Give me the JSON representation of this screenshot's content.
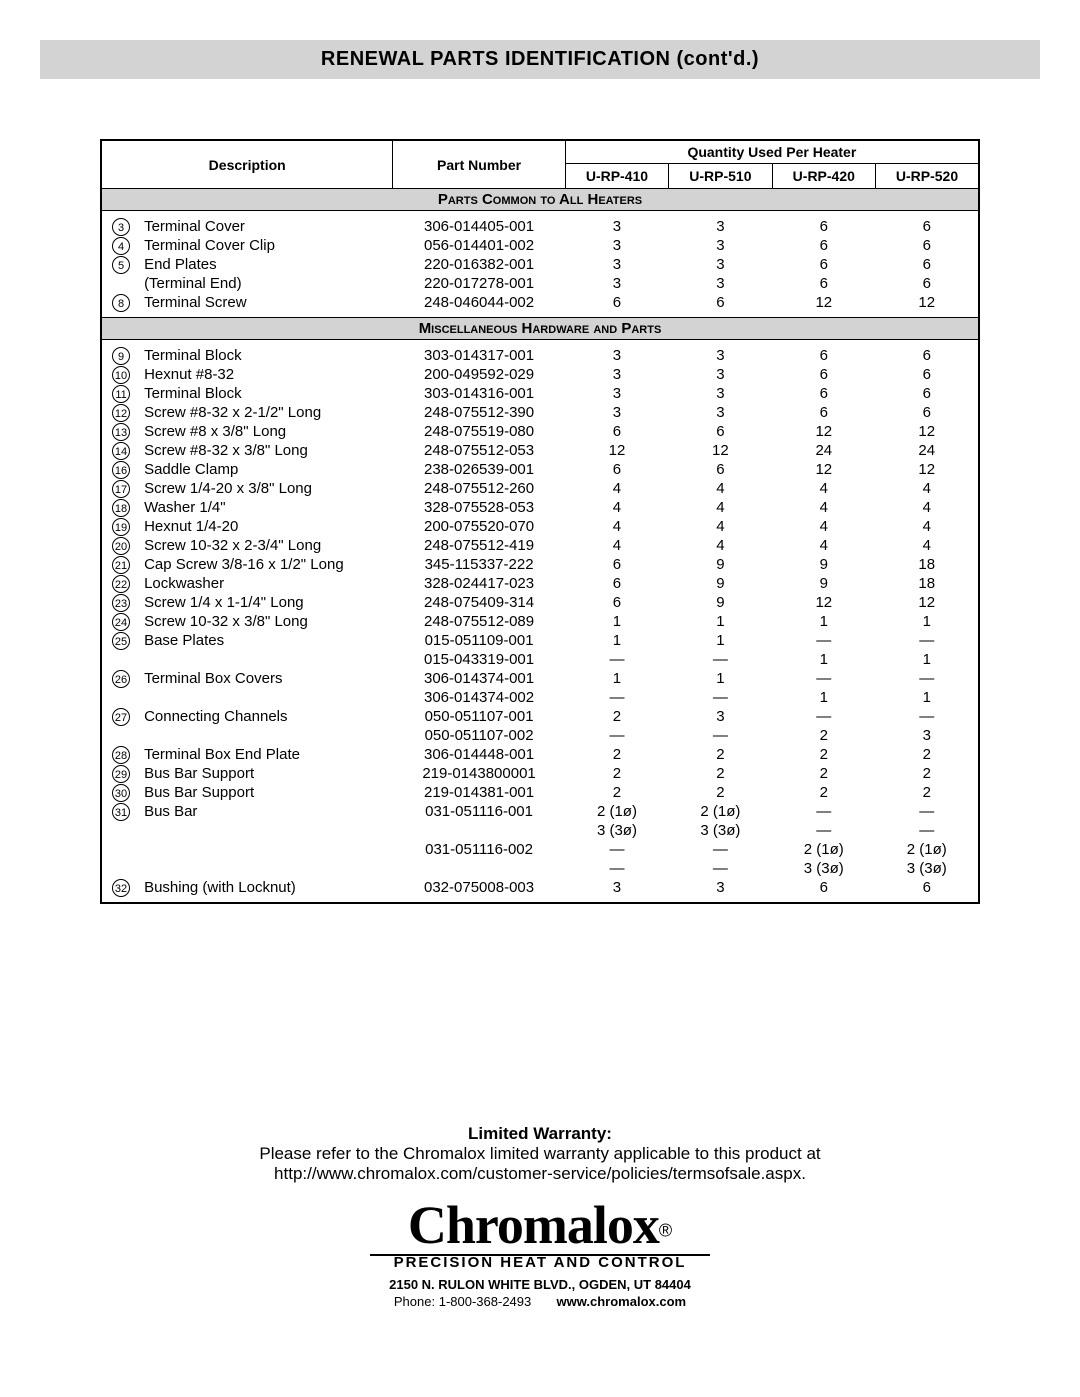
{
  "page_title": "RENEWAL PARTS IDENTIFICATION (cont'd.)",
  "columns": {
    "description": "Description",
    "part_number": "Part Number",
    "qty_header": "Quantity Used Per Heater",
    "models": [
      "U-RP-410",
      "U-RP-510",
      "U-RP-420",
      "U-RP-520"
    ]
  },
  "sections": [
    {
      "title": "Parts Common to All Heaters",
      "rows": [
        {
          "ref": "3",
          "desc": "Terminal Cover",
          "part": "306-014405-001",
          "qty": [
            "3",
            "3",
            "6",
            "6"
          ]
        },
        {
          "ref": "4",
          "desc": "Terminal Cover Clip",
          "part": "056-014401-002",
          "qty": [
            "3",
            "3",
            "6",
            "6"
          ]
        },
        {
          "ref": "5",
          "desc": "End Plates",
          "part": "220-016382-001",
          "qty": [
            "3",
            "3",
            "6",
            "6"
          ]
        },
        {
          "ref": "",
          "desc": "(Terminal End)",
          "part": "220-017278-001",
          "qty": [
            "3",
            "3",
            "6",
            "6"
          ]
        },
        {
          "ref": "8",
          "desc": "Terminal Screw",
          "part": "248-046044-002",
          "qty": [
            "6",
            "6",
            "12",
            "12"
          ]
        }
      ]
    },
    {
      "title": "Miscellaneous Hardware and Parts",
      "rows": [
        {
          "ref": "9",
          "desc": "Terminal Block",
          "part": "303-014317-001",
          "qty": [
            "3",
            "3",
            "6",
            "6"
          ]
        },
        {
          "ref": "10",
          "desc": "Hexnut #8-32",
          "part": "200-049592-029",
          "qty": [
            "3",
            "3",
            "6",
            "6"
          ]
        },
        {
          "ref": "11",
          "desc": "Terminal Block",
          "part": "303-014316-001",
          "qty": [
            "3",
            "3",
            "6",
            "6"
          ]
        },
        {
          "ref": "12",
          "desc": "Screw #8-32 x 2-1/2\" Long",
          "part": "248-075512-390",
          "qty": [
            "3",
            "3",
            "6",
            "6"
          ]
        },
        {
          "ref": "13",
          "desc": "Screw #8 x 3/8\" Long",
          "part": "248-075519-080",
          "qty": [
            "6",
            "6",
            "12",
            "12"
          ]
        },
        {
          "ref": "14",
          "desc": "Screw #8-32 x 3/8\" Long",
          "part": "248-075512-053",
          "qty": [
            "12",
            "12",
            "24",
            "24"
          ]
        },
        {
          "ref": "16",
          "desc": "Saddle Clamp",
          "part": "238-026539-001",
          "qty": [
            "6",
            "6",
            "12",
            "12"
          ]
        },
        {
          "ref": "17",
          "desc": "Screw 1/4-20 x 3/8\" Long",
          "part": "248-075512-260",
          "qty": [
            "4",
            "4",
            "4",
            "4"
          ]
        },
        {
          "ref": "18",
          "desc": "Washer 1/4\"",
          "part": "328-075528-053",
          "qty": [
            "4",
            "4",
            "4",
            "4"
          ]
        },
        {
          "ref": "19",
          "desc": "Hexnut 1/4-20",
          "part": "200-075520-070",
          "qty": [
            "4",
            "4",
            "4",
            "4"
          ]
        },
        {
          "ref": "20",
          "desc": "Screw 10-32 x 2-3/4\" Long",
          "part": "248-075512-419",
          "qty": [
            "4",
            "4",
            "4",
            "4"
          ]
        },
        {
          "ref": "21",
          "desc": "Cap Screw 3/8-16 x 1/2\" Long",
          "part": "345-115337-222",
          "qty": [
            "6",
            "9",
            "9",
            "18"
          ]
        },
        {
          "ref": "22",
          "desc": "Lockwasher",
          "part": "328-024417-023",
          "qty": [
            "6",
            "9",
            "9",
            "18"
          ]
        },
        {
          "ref": "23",
          "desc": "Screw 1/4 x 1-1/4\" Long",
          "part": "248-075409-314",
          "qty": [
            "6",
            "9",
            "12",
            "12"
          ]
        },
        {
          "ref": "24",
          "desc": "Screw 10-32 x 3/8\" Long",
          "part": "248-075512-089",
          "qty": [
            "1",
            "1",
            "1",
            "1"
          ]
        },
        {
          "ref": "25",
          "desc": "Base Plates",
          "part": "015-051109-001",
          "qty": [
            "1",
            "1",
            "—",
            "—"
          ]
        },
        {
          "ref": "",
          "desc": "",
          "part": "015-043319-001",
          "qty": [
            "—",
            "—",
            "1",
            "1"
          ]
        },
        {
          "ref": "26",
          "desc": "Terminal Box Covers",
          "part": "306-014374-001",
          "qty": [
            "1",
            "1",
            "—",
            "—"
          ]
        },
        {
          "ref": "",
          "desc": "",
          "part": "306-014374-002",
          "qty": [
            "—",
            "—",
            "1",
            "1"
          ]
        },
        {
          "ref": "27",
          "desc": "Connecting Channels",
          "part": "050-051107-001",
          "qty": [
            "2",
            "3",
            "—",
            "—"
          ]
        },
        {
          "ref": "",
          "desc": "",
          "part": "050-051107-002",
          "qty": [
            "—",
            "—",
            "2",
            "3"
          ]
        },
        {
          "ref": "28",
          "desc": "Terminal Box End Plate",
          "part": "306-014448-001",
          "qty": [
            "2",
            "2",
            "2",
            "2"
          ]
        },
        {
          "ref": "29",
          "desc": "Bus Bar Support",
          "part": "219-0143800001",
          "qty": [
            "2",
            "2",
            "2",
            "2"
          ]
        },
        {
          "ref": "30",
          "desc": "Bus Bar Support",
          "part": "219-014381-001",
          "qty": [
            "2",
            "2",
            "2",
            "2"
          ]
        },
        {
          "ref": "31",
          "desc": "Bus Bar",
          "part": "031-051116-001",
          "qty": [
            "2 (1ø)",
            "2 (1ø)",
            "—",
            "—"
          ]
        },
        {
          "ref": "",
          "desc": "",
          "part": "",
          "qty": [
            "3 (3ø)",
            "3 (3ø)",
            "—",
            "—"
          ]
        },
        {
          "ref": "",
          "desc": "",
          "part": "031-051116-002",
          "qty": [
            "—",
            "—",
            "2 (1ø)",
            "2 (1ø)"
          ]
        },
        {
          "ref": "",
          "desc": "",
          "part": "",
          "qty": [
            "—",
            "—",
            "3 (3ø)",
            "3 (3ø)"
          ]
        },
        {
          "ref": "32",
          "desc": "Bushing (with Locknut)",
          "part": "032-075008-003",
          "qty": [
            "3",
            "3",
            "6",
            "6"
          ]
        }
      ]
    }
  ],
  "warranty": {
    "title": "Limited Warranty:",
    "line1": "Please refer to the Chromalox limited warranty applicable to this product at",
    "line2": "http://www.chromalox.com/customer-service/policies/termsofsale.aspx."
  },
  "logo": {
    "name": "Chromalox",
    "reg": "®",
    "tagline": "PRECISION HEAT AND CONTROL",
    "address": "2150 N. RULON WHITE BLVD., OGDEN, UT 84404",
    "phone_label": "Phone: ",
    "phone": "1-800-368-2493",
    "web": "www.chromalox.com"
  }
}
